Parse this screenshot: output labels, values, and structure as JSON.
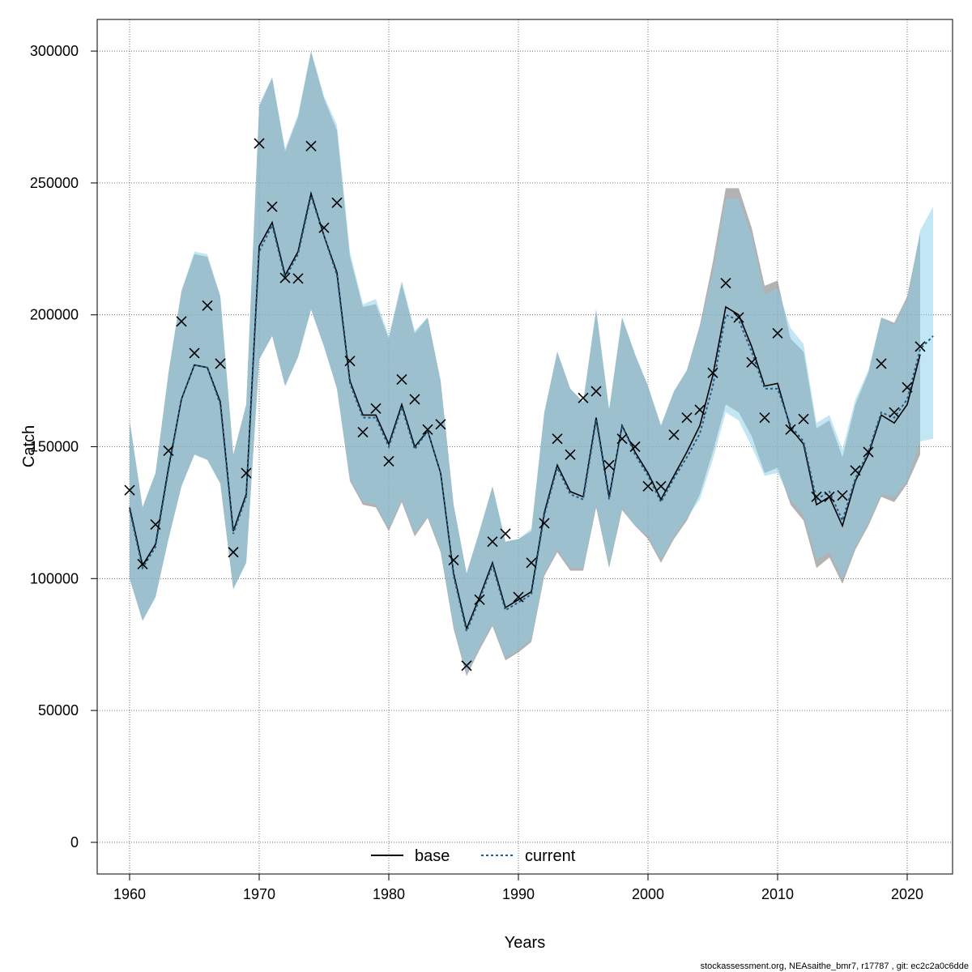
{
  "chart_data": {
    "type": "line",
    "title": "",
    "xlabel": "Years",
    "ylabel": "Catch",
    "xlim": [
      1957.5,
      2023.5
    ],
    "ylim": [
      -12000,
      312000
    ],
    "xticks": [
      "1960",
      "1970",
      "1980",
      "1990",
      "2000",
      "2010",
      "2020"
    ],
    "yticks": [
      "0",
      "50000",
      "100000",
      "150000",
      "200000",
      "250000",
      "300000"
    ],
    "grid": true,
    "legend": {
      "position": "bottom-center",
      "entries": [
        "base",
        "current"
      ]
    },
    "colors": {
      "base_band": "#7f7f7f",
      "current_band": "#87ceeb",
      "base_line": "#000000",
      "current_line": "#1b5f8a",
      "observed": "#000000"
    },
    "series": [
      {
        "name": "base",
        "x": [
          1960,
          1961,
          1962,
          1963,
          1964,
          1965,
          1966,
          1967,
          1968,
          1969,
          1970,
          1971,
          1972,
          1973,
          1974,
          1975,
          1976,
          1977,
          1978,
          1979,
          1980,
          1981,
          1982,
          1983,
          1984,
          1985,
          1986,
          1987,
          1988,
          1989,
          1990,
          1991,
          1992,
          1993,
          1994,
          1995,
          1996,
          1997,
          1998,
          1999,
          2000,
          2001,
          2002,
          2003,
          2004,
          2005,
          2006,
          2007,
          2008,
          2009,
          2010,
          2011,
          2012,
          2013,
          2014,
          2015,
          2016,
          2017,
          2018,
          2019,
          2020,
          2021
        ],
        "values": [
          127000,
          105000,
          113000,
          142000,
          168000,
          181000,
          180000,
          167000,
          118000,
          132000,
          226000,
          235000,
          215000,
          224000,
          246000,
          230000,
          216000,
          175000,
          162000,
          162000,
          151000,
          166000,
          150000,
          156000,
          140000,
          102000,
          81000,
          93000,
          106000,
          89000,
          92000,
          95000,
          125000,
          143000,
          133000,
          131000,
          161000,
          131000,
          158000,
          148000,
          140000,
          130000,
          139000,
          148000,
          158000,
          177000,
          203000,
          200000,
          188000,
          173000,
          174000,
          157000,
          151000,
          128000,
          131000,
          120000,
          137000,
          147000,
          162000,
          159000,
          166000,
          185000
        ],
        "lower": [
          100000,
          84000,
          93000,
          115000,
          135000,
          147000,
          145000,
          136000,
          96000,
          106000,
          183000,
          192000,
          173000,
          184000,
          202000,
          188000,
          172000,
          137000,
          128000,
          127000,
          118000,
          129000,
          116000,
          123000,
          110000,
          81000,
          63000,
          73000,
          82000,
          69000,
          72000,
          76000,
          101000,
          110000,
          103000,
          103000,
          127000,
          104000,
          126000,
          120000,
          115000,
          106000,
          115000,
          122000,
          132000,
          148000,
          166000,
          163000,
          154000,
          140000,
          142000,
          128000,
          122000,
          104000,
          108000,
          98000,
          111000,
          120000,
          131000,
          129000,
          136000,
          147000
        ],
        "upper": [
          160000,
          127000,
          140000,
          178000,
          209000,
          223000,
          222000,
          207000,
          147000,
          166000,
          279000,
          290000,
          262000,
          275000,
          300000,
          282000,
          270000,
          222000,
          203000,
          204000,
          191000,
          212000,
          193000,
          199000,
          175000,
          128000,
          102000,
          118000,
          135000,
          114000,
          115000,
          118000,
          163000,
          186000,
          172000,
          167000,
          202000,
          164000,
          199000,
          185000,
          173000,
          158000,
          171000,
          179000,
          196000,
          220000,
          248000,
          248000,
          233000,
          211000,
          213000,
          191000,
          186000,
          157000,
          160000,
          146000,
          166000,
          178000,
          199000,
          197000,
          207000,
          231000
        ]
      },
      {
        "name": "current",
        "x": [
          1960,
          1961,
          1962,
          1963,
          1964,
          1965,
          1966,
          1967,
          1968,
          1969,
          1970,
          1971,
          1972,
          1973,
          1974,
          1975,
          1976,
          1977,
          1978,
          1979,
          1980,
          1981,
          1982,
          1983,
          1984,
          1985,
          1986,
          1987,
          1988,
          1989,
          1990,
          1991,
          1992,
          1993,
          1994,
          1995,
          1996,
          1997,
          1998,
          1999,
          2000,
          2001,
          2002,
          2003,
          2004,
          2005,
          2006,
          2007,
          2008,
          2009,
          2010,
          2011,
          2012,
          2013,
          2014,
          2015,
          2016,
          2017,
          2018,
          2019,
          2020,
          2021,
          2022
        ],
        "values": [
          126000,
          104000,
          112000,
          141000,
          168000,
          181000,
          180000,
          166000,
          117000,
          131000,
          224000,
          234000,
          214000,
          223000,
          245000,
          230000,
          215000,
          174000,
          161000,
          161000,
          150000,
          165000,
          149000,
          156000,
          140000,
          101000,
          80000,
          92000,
          105000,
          88000,
          91000,
          94000,
          124000,
          142000,
          132000,
          130000,
          160000,
          130000,
          158000,
          147000,
          139000,
          129000,
          138000,
          146000,
          155000,
          173000,
          200000,
          198000,
          186000,
          172000,
          172000,
          158000,
          152000,
          130000,
          133000,
          122000,
          138000,
          148000,
          163000,
          161000,
          168000,
          187000,
          192000
        ],
        "lower": [
          100000,
          84000,
          93000,
          115000,
          135000,
          147000,
          145000,
          136000,
          96000,
          106000,
          183000,
          192000,
          173000,
          184000,
          202000,
          188000,
          172000,
          138000,
          129000,
          128000,
          119000,
          130000,
          117000,
          124000,
          111000,
          82000,
          64000,
          74000,
          83000,
          70000,
          73000,
          77000,
          102000,
          111000,
          104000,
          104000,
          128000,
          105000,
          127000,
          120000,
          116000,
          107000,
          116000,
          123000,
          130000,
          145000,
          163000,
          160000,
          150000,
          139000,
          140000,
          130000,
          124000,
          107000,
          110000,
          100000,
          112000,
          121000,
          132000,
          131000,
          137000,
          152000,
          153000
        ],
        "upper": [
          160000,
          127000,
          140000,
          178000,
          209000,
          224000,
          223000,
          207000,
          147000,
          166000,
          280000,
          290000,
          263000,
          276000,
          300000,
          283000,
          272000,
          224000,
          204000,
          206000,
          192000,
          213000,
          194000,
          199000,
          175000,
          128000,
          102000,
          118000,
          135000,
          114000,
          115000,
          119000,
          163000,
          186000,
          172000,
          167000,
          202000,
          164000,
          199000,
          185000,
          173000,
          158000,
          171000,
          179000,
          195000,
          216000,
          244000,
          244000,
          230000,
          208000,
          210000,
          195000,
          189000,
          159000,
          162000,
          149000,
          168000,
          179000,
          199000,
          196000,
          206000,
          232000,
          241000
        ]
      }
    ],
    "observed": {
      "x": [
        1960,
        1961,
        1962,
        1963,
        1964,
        1965,
        1966,
        1967,
        1968,
        1969,
        1970,
        1971,
        1972,
        1973,
        1974,
        1975,
        1976,
        1977,
        1978,
        1979,
        1980,
        1981,
        1982,
        1983,
        1984,
        1985,
        1986,
        1987,
        1988,
        1989,
        1990,
        1991,
        1992,
        1993,
        1994,
        1995,
        1996,
        1997,
        1998,
        1999,
        2000,
        2001,
        2002,
        2003,
        2004,
        2005,
        2006,
        2007,
        2008,
        2009,
        2010,
        2011,
        2012,
        2013,
        2014,
        2015,
        2016,
        2017,
        2018,
        2019,
        2020,
        2021
      ],
      "values": [
        133500,
        105500,
        120500,
        148500,
        197500,
        185500,
        203500,
        181500,
        110000,
        140000,
        265000,
        241000,
        214000,
        213800,
        264000,
        233000,
        242500,
        182500,
        155500,
        164500,
        144500,
        175500,
        168000,
        156500,
        158500,
        107000,
        67000,
        92000,
        114000,
        117000,
        93000,
        106000,
        121000,
        153000,
        147000,
        168500,
        171000,
        143000,
        153000,
        150000,
        135000,
        135000,
        154500,
        161000,
        164000,
        178000,
        212000,
        199000,
        182000,
        161000,
        193000,
        156500,
        160500,
        131000,
        131000,
        131500,
        141000,
        148000,
        181500,
        163000,
        172500,
        188000
      ]
    }
  },
  "footer": "stockassessment.org, NEAsaithe_bmr7, r17787 , git: ec2c2a0c6dde"
}
